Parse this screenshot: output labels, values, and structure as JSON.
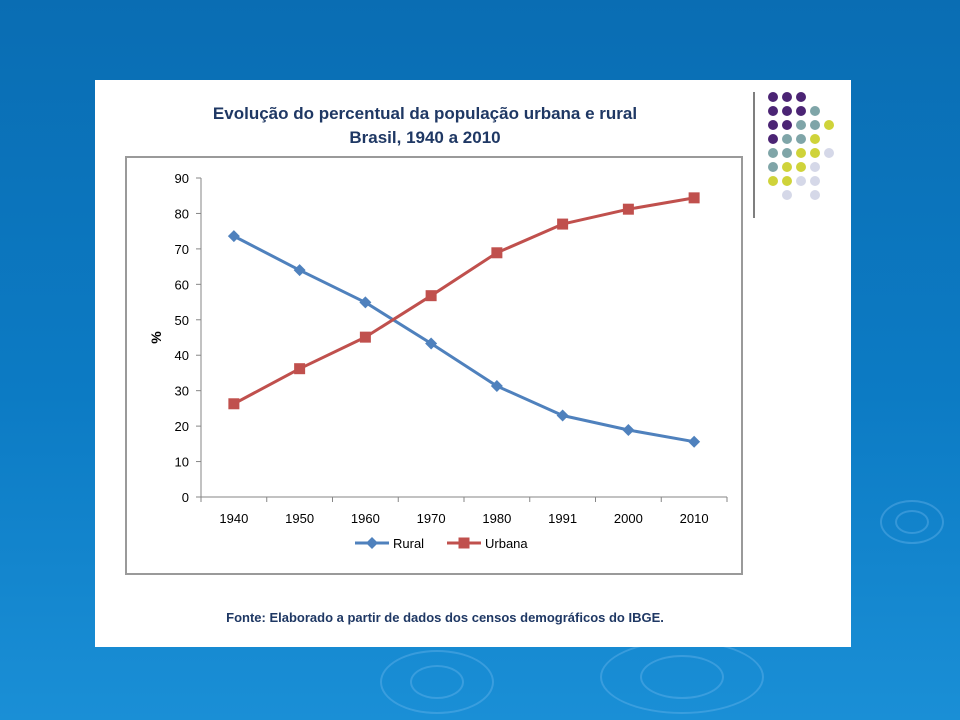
{
  "slide": {
    "title_line1": "Evolução do percentual da população urbana e rural",
    "title_line2": "Brasil, 1940 a 2010",
    "source": "Fonte: Elaborado a partir de dados dos censos demográficos do IBGE."
  },
  "colors": {
    "rural": "#4f81bd",
    "urbana": "#c0504d",
    "title": "#1f3864",
    "dots": [
      "#4b2474",
      "#7fa5a8",
      "#cfd33a",
      "#d5d8e8"
    ]
  },
  "chart_data": {
    "type": "line",
    "title": "Evolução do percentual da população urbana e rural Brasil, 1940 a 2010",
    "xlabel": "",
    "ylabel": "%",
    "categories": [
      "1940",
      "1950",
      "1960",
      "1970",
      "1980",
      "1991",
      "2000",
      "2010"
    ],
    "ylim": [
      0,
      90
    ],
    "yticks": [
      0,
      10,
      20,
      30,
      40,
      50,
      60,
      70,
      80,
      90
    ],
    "grid": false,
    "legend_position": "bottom",
    "series": [
      {
        "name": "Rural",
        "marker": "diamond",
        "values": [
          73.6,
          64.0,
          54.9,
          43.3,
          31.3,
          23.0,
          18.9,
          15.6
        ]
      },
      {
        "name": "Urbana",
        "marker": "square",
        "values": [
          26.3,
          36.2,
          45.1,
          56.8,
          68.9,
          77.0,
          81.2,
          84.4
        ]
      }
    ]
  }
}
